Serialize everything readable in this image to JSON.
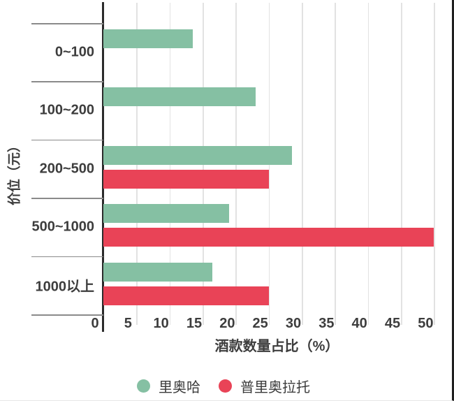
{
  "chart_data": {
    "type": "bar",
    "orientation": "horizontal",
    "title": "",
    "categories": [
      "0~100",
      "100~200",
      "200~500",
      "500~1000",
      "1000以上"
    ],
    "series": [
      {
        "name": "里奥哈",
        "color": "#85c0a3",
        "values": [
          13.5,
          23,
          28.5,
          19,
          16.5
        ]
      },
      {
        "name": "普里奥拉托",
        "color": "#e94357",
        "values": [
          0,
          0,
          25,
          50,
          25
        ]
      }
    ],
    "xlabel": "酒款数量占比（%）",
    "ylabel": "价位（元）",
    "xlim": [
      0,
      52.5
    ],
    "xticks": [
      0,
      5,
      10,
      15,
      20,
      25,
      30,
      35,
      40,
      45,
      50
    ],
    "grid": true,
    "legend_position": "bottom"
  },
  "colors": {
    "bar_green": "#85c0a3",
    "bar_red": "#e94357",
    "text": "#3d3d3d",
    "gridline": "#e2e2e2",
    "separator": "#8a8a8a",
    "axis_line": "#2b2b2b"
  }
}
